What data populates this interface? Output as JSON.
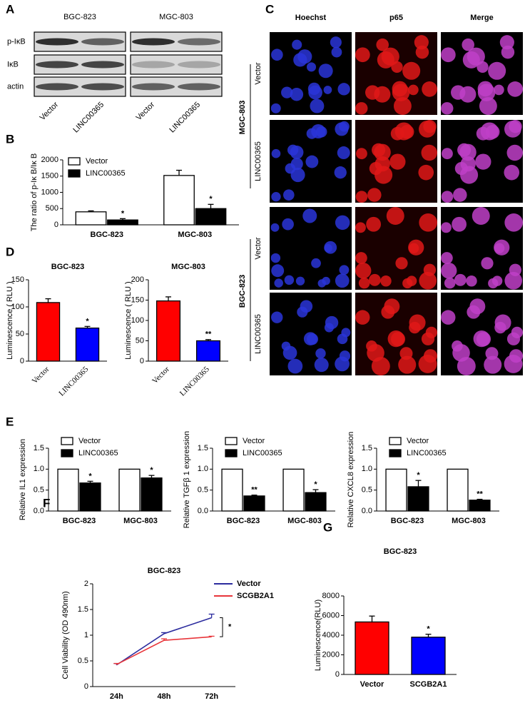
{
  "panel_labels": [
    "A",
    "B",
    "C",
    "D",
    "E",
    "F",
    "G"
  ],
  "western_blot": {
    "cell_lines": [
      "BGC-823",
      "MGC-803"
    ],
    "proteins": [
      "p-IκB",
      "IκB",
      "actin"
    ],
    "lanes": [
      "Vector",
      "LINC00365",
      "Vector",
      "LINC00365"
    ]
  },
  "immunofluorescence": {
    "channels": [
      "Hoechst",
      "p65",
      "Merge"
    ],
    "cell_lines": [
      "MGC-803",
      "BGC-823"
    ],
    "conditions": [
      "Vector",
      "LINC00365",
      "Vector",
      "LINC00365"
    ]
  },
  "chart_data": [
    {
      "type": "bar",
      "y_label": "The ratio of p-Iκ B/Iκ B",
      "categories": [
        "BGC-823",
        "MGC-803"
      ],
      "series": [
        {
          "name": "Vector",
          "color": "#ffffff",
          "values": [
            400,
            1520
          ],
          "errors": [
            30,
            160
          ]
        },
        {
          "name": "LINC00365",
          "color": "#000000",
          "values": [
            150,
            500
          ],
          "errors": [
            40,
            130
          ],
          "significance": [
            "*",
            "*"
          ]
        }
      ],
      "ylim": [
        0,
        2000
      ],
      "yticks": [
        0,
        500,
        1000,
        1500,
        2000
      ],
      "legend": "upper left"
    },
    {
      "type": "bar",
      "title": "BGC-823",
      "y_label": "Luminescence ( RLU )",
      "categories": [
        "Vector",
        "LINC00365"
      ],
      "series": [
        {
          "colors": [
            "#ff0000",
            "#0000ff"
          ],
          "values": [
            108,
            61
          ],
          "errors": [
            7,
            3
          ],
          "significance": [
            null,
            "*"
          ]
        }
      ],
      "ylim": [
        0,
        150
      ],
      "yticks": [
        0,
        50,
        100,
        150
      ]
    },
    {
      "type": "bar",
      "title": "MGC-803",
      "y_label": "Luminescence ( RLU )",
      "categories": [
        "Vector",
        "LINC00365"
      ],
      "series": [
        {
          "colors": [
            "#ff0000",
            "#0000ff"
          ],
          "values": [
            148,
            50
          ],
          "errors": [
            10,
            3
          ],
          "significance": [
            null,
            "**"
          ]
        }
      ],
      "ylim": [
        0,
        200
      ],
      "yticks": [
        0,
        50,
        100,
        150,
        200
      ]
    },
    {
      "type": "bar",
      "y_label": "Relative IL1 expression",
      "categories": [
        "BGC-823",
        "MGC-803"
      ],
      "series": [
        {
          "name": "Vector",
          "color": "#ffffff",
          "values": [
            1,
            1
          ]
        },
        {
          "name": "LINC00365",
          "color": "#000000",
          "values": [
            0.67,
            0.79
          ],
          "errors": [
            0.04,
            0.06
          ],
          "significance": [
            "*",
            "*"
          ]
        }
      ],
      "ylim": [
        0,
        1.5
      ],
      "yticks": [
        {
          "value": 0,
          "label": "0.0"
        },
        0.5,
        {
          "value": 1,
          "label": "1.0"
        },
        1.5
      ],
      "legend": "upper left"
    },
    {
      "type": "bar",
      "y_label": "Relative TGFβ 1 expression",
      "categories": [
        "BGC-823",
        "MGC-803"
      ],
      "series": [
        {
          "name": "Vector",
          "color": "#ffffff",
          "values": [
            1,
            1
          ]
        },
        {
          "name": "LINC00365",
          "color": "#000000",
          "values": [
            0.36,
            0.44
          ],
          "errors": [
            0.02,
            0.07
          ],
          "significance": [
            "**",
            "*"
          ]
        }
      ],
      "ylim": [
        0,
        1.5
      ],
      "yticks": [
        {
          "value": 0,
          "label": "0.0"
        },
        0.5,
        {
          "value": 1,
          "label": "1.0"
        },
        1.5
      ],
      "legend": "upper left"
    },
    {
      "type": "bar",
      "y_label": "Relative CXCL8 expression",
      "categories": [
        "BGC-823",
        "MGC-803"
      ],
      "series": [
        {
          "name": "Vector",
          "color": "#ffffff",
          "values": [
            1,
            1
          ]
        },
        {
          "name": "LINC00365",
          "color": "#000000",
          "values": [
            0.58,
            0.26
          ],
          "errors": [
            0.15,
            0.02
          ],
          "significance": [
            "*",
            "**"
          ]
        }
      ],
      "ylim": [
        0,
        1.5
      ],
      "yticks": [
        {
          "value": 0,
          "label": "0.0"
        },
        0.5,
        {
          "value": 1,
          "label": "1.0"
        },
        1.5
      ],
      "legend": "upper left"
    },
    {
      "type": "line",
      "title": "BGC-823",
      "y_label": "Cell Viability (OD 490nm)",
      "categories": [
        "24h",
        "48h",
        "72h"
      ],
      "series": [
        {
          "name": "Vector",
          "color": "#2b2b9e",
          "values": [
            0.42,
            1.03,
            1.34
          ],
          "errors": [
            0.03,
            0.02,
            0.07
          ]
        },
        {
          "name": "SCGB2A1",
          "color": "#e8353a",
          "values": [
            0.43,
            0.9,
            0.97
          ],
          "errors": [
            0.02,
            0.03,
            0.01
          ]
        }
      ],
      "ylim": [
        0,
        2
      ],
      "yticks": [
        0,
        0.5,
        1,
        1.5,
        2
      ],
      "legend": "upper right",
      "annotation": "*"
    },
    {
      "type": "bar",
      "title": "BGC-823",
      "y_label": "Luminescence(RLU)",
      "categories": [
        "Vector",
        "SCGB2A1"
      ],
      "series": [
        {
          "colors": [
            "#ff0000",
            "#0000ff"
          ],
          "values": [
            5350,
            3800
          ],
          "errors": [
            600,
            300
          ],
          "significance": [
            null,
            "*"
          ]
        }
      ],
      "ylim": [
        0,
        8000
      ],
      "yticks": [
        0,
        2000,
        4000,
        6000,
        8000
      ]
    }
  ]
}
